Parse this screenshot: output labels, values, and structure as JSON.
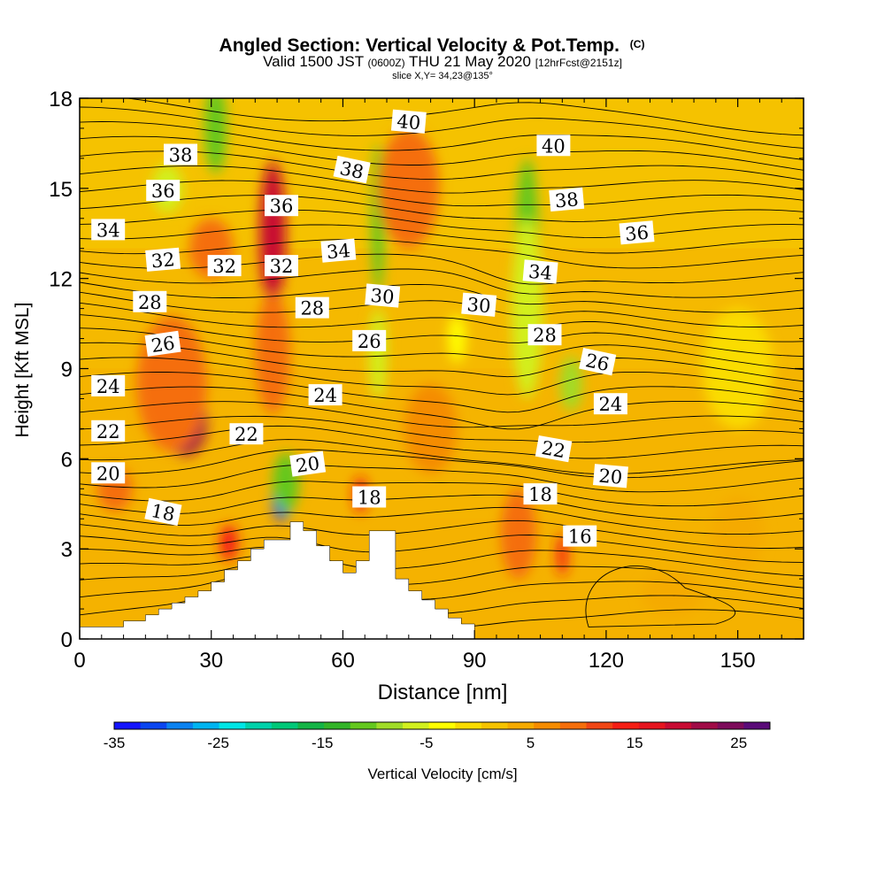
{
  "chart_data": {
    "type": "heatmap",
    "title": "Angled Section: Vertical Velocity & Pot.Temp.",
    "title_mark": "(C)",
    "subtitle_a": "Valid 1500 JST",
    "subtitle_b": "(0600Z)",
    "subtitle_c": "THU 21 May 2020",
    "subtitle_d": "[12hrFcst@2151z]",
    "subtitle2": "slice X,Y= 34,23@135°",
    "xlabel": "Distance [nm]",
    "ylabel": "Height [Kft MSL]",
    "xlim": [
      0,
      165
    ],
    "ylim": [
      0,
      18
    ],
    "x_ticks": [
      0,
      30,
      60,
      90,
      120,
      150
    ],
    "y_ticks": [
      0,
      3,
      6,
      9,
      12,
      15,
      18
    ],
    "colorbar": {
      "label": "Vertical Velocity [cm/s]",
      "range": [
        -35,
        28
      ],
      "tick_labels": [
        "-35",
        "-25",
        "-15",
        "-5",
        "5",
        "15",
        "25"
      ],
      "colors": [
        "#1414ff",
        "#0a46f0",
        "#0a82f0",
        "#00b4f0",
        "#00e6e6",
        "#00d2aa",
        "#00c878",
        "#14b446",
        "#32b428",
        "#64c81e",
        "#a0dc28",
        "#d2f01e",
        "#ffff00",
        "#fadc00",
        "#f5c300",
        "#f5aa00",
        "#f58c00",
        "#f56e0a",
        "#f04614",
        "#f51e14",
        "#e6141e",
        "#c80a32",
        "#a00a46",
        "#7d0a5a",
        "#5a0a78"
      ]
    },
    "contour_series": "Potential temperature (isentropes)",
    "contour_labels": [
      {
        "text": "38",
        "x": 23,
        "y": 16.1,
        "rot": 0
      },
      {
        "text": "36",
        "x": 19,
        "y": 14.9,
        "rot": 0
      },
      {
        "text": "34",
        "x": 6.5,
        "y": 13.6,
        "rot": 0
      },
      {
        "text": "32",
        "x": 19,
        "y": 12.6,
        "rot": -5
      },
      {
        "text": "32",
        "x": 33,
        "y": 12.4,
        "rot": 0
      },
      {
        "text": "32",
        "x": 46,
        "y": 12.4,
        "rot": 0
      },
      {
        "text": "36",
        "x": 46,
        "y": 14.4,
        "rot": 0
      },
      {
        "text": "28",
        "x": 16,
        "y": 11.2,
        "rot": 0
      },
      {
        "text": "28",
        "x": 53,
        "y": 11,
        "rot": 0
      },
      {
        "text": "26",
        "x": 19,
        "y": 9.8,
        "rot": -8
      },
      {
        "text": "24",
        "x": 6.5,
        "y": 8.4,
        "rot": 0
      },
      {
        "text": "22",
        "x": 6.5,
        "y": 6.9,
        "rot": 0
      },
      {
        "text": "20",
        "x": 6.5,
        "y": 5.5,
        "rot": 0
      },
      {
        "text": "18",
        "x": 19,
        "y": 4.2,
        "rot": 12
      },
      {
        "text": "22",
        "x": 38,
        "y": 6.8,
        "rot": 0
      },
      {
        "text": "20",
        "x": 52,
        "y": 5.8,
        "rot": -8
      },
      {
        "text": "24",
        "x": 56,
        "y": 8.1,
        "rot": 0
      },
      {
        "text": "26",
        "x": 66,
        "y": 9.9,
        "rot": 0
      },
      {
        "text": "34",
        "x": 59,
        "y": 12.9,
        "rot": -5
      },
      {
        "text": "38",
        "x": 62,
        "y": 15.6,
        "rot": 12
      },
      {
        "text": "40",
        "x": 75,
        "y": 17.2,
        "rot": 5
      },
      {
        "text": "30",
        "x": 69,
        "y": 11.4,
        "rot": 5
      },
      {
        "text": "18",
        "x": 66,
        "y": 4.7,
        "rot": 0
      },
      {
        "text": "30",
        "x": 91,
        "y": 11.1,
        "rot": 5
      },
      {
        "text": "34",
        "x": 105,
        "y": 12.2,
        "rot": 5
      },
      {
        "text": "28",
        "x": 106,
        "y": 10.1,
        "rot": 0
      },
      {
        "text": "26",
        "x": 118,
        "y": 9.2,
        "rot": 12
      },
      {
        "text": "24",
        "x": 121,
        "y": 7.8,
        "rot": 0
      },
      {
        "text": "22",
        "x": 108,
        "y": 6.3,
        "rot": 10
      },
      {
        "text": "20",
        "x": 121,
        "y": 5.4,
        "rot": 5
      },
      {
        "text": "18",
        "x": 105,
        "y": 4.8,
        "rot": 0
      },
      {
        "text": "16",
        "x": 114,
        "y": 3.4,
        "rot": 0
      },
      {
        "text": "40",
        "x": 108,
        "y": 16.4,
        "rot": 0
      },
      {
        "text": "38",
        "x": 111,
        "y": 14.6,
        "rot": -5
      },
      {
        "text": "36",
        "x": 127,
        "y": 13.5,
        "rot": -5
      }
    ],
    "terrain_profile": {
      "x": [
        0,
        10,
        10,
        15,
        15,
        18,
        18,
        21,
        21,
        24,
        24,
        27,
        27,
        30,
        30,
        33,
        33,
        36,
        36,
        39,
        39,
        42,
        42,
        48,
        48,
        51,
        51,
        54,
        54,
        57,
        57,
        60,
        60,
        63,
        63,
        66,
        66,
        72,
        72,
        75,
        75,
        78,
        78,
        81,
        81,
        84,
        84,
        87,
        87,
        90,
        90
      ],
      "y": [
        0.4,
        0.4,
        0.6,
        0.6,
        0.8,
        0.8,
        1.0,
        1.0,
        1.2,
        1.2,
        1.4,
        1.4,
        1.6,
        1.6,
        1.9,
        1.9,
        2.3,
        2.3,
        2.6,
        2.6,
        3.0,
        3.0,
        3.3,
        3.3,
        3.9,
        3.9,
        3.6,
        3.6,
        3.1,
        3.1,
        2.6,
        2.6,
        2.2,
        2.2,
        2.6,
        2.6,
        3.6,
        3.6,
        2.0,
        2.0,
        1.6,
        1.6,
        1.3,
        1.3,
        1.0,
        1.0,
        0.7,
        0.7,
        0.5,
        0.5,
        0.4
      ]
    },
    "velocity_features": [
      {
        "x": 24,
        "y": 7.2,
        "w": -10,
        "h": 2.2,
        "v": 22
      },
      {
        "x": 21,
        "y": 8.5,
        "w": -16,
        "h": 4.5,
        "v": 10
      },
      {
        "x": 44,
        "y": 13.5,
        "w": -6,
        "h": 4.8,
        "v": 20
      },
      {
        "x": 44,
        "y": 9.5,
        "w": -8,
        "h": 4,
        "v": 10
      },
      {
        "x": 46,
        "y": 4.6,
        "w": -4,
        "h": 1.3,
        "v": -33
      },
      {
        "x": 47,
        "y": 5.2,
        "w": -6,
        "h": 2,
        "v": -10
      },
      {
        "x": 34,
        "y": 3.2,
        "w": -4,
        "h": 1.2,
        "v": 14
      },
      {
        "x": 100,
        "y": 2.8,
        "w": -4,
        "h": 1.6,
        "v": 22
      },
      {
        "x": 100,
        "y": 3.5,
        "w": -8,
        "h": 3,
        "v": 10
      },
      {
        "x": 110,
        "y": 2.8,
        "w": -2,
        "h": 1.4,
        "v": 14
      },
      {
        "x": 64,
        "y": 4.8,
        "w": -3,
        "h": 1.2,
        "v": 13
      },
      {
        "x": 68,
        "y": 14,
        "w": -3,
        "h": 5,
        "v": -12
      },
      {
        "x": 68,
        "y": 9.5,
        "w": -4,
        "h": 3,
        "v": -5
      },
      {
        "x": 102,
        "y": 13.5,
        "w": -5,
        "h": 5,
        "v": -12
      },
      {
        "x": 102,
        "y": 11,
        "w": -7,
        "h": 6,
        "v": -5
      },
      {
        "x": 112,
        "y": 8.5,
        "w": -5,
        "h": 1.8,
        "v": -8
      },
      {
        "x": 31,
        "y": 17,
        "w": -5,
        "h": 3,
        "v": -10
      },
      {
        "x": 20,
        "y": 15,
        "w": -7,
        "h": 1.6,
        "v": -5
      },
      {
        "x": 30,
        "y": 13,
        "w": -10,
        "h": 2,
        "v": 8
      },
      {
        "x": 75,
        "y": 15,
        "w": -14,
        "h": 4,
        "v": 8
      },
      {
        "x": 135,
        "y": 1.5,
        "w": -14,
        "h": 1.5,
        "v": 5
      },
      {
        "x": 150,
        "y": 3.5,
        "w": -12,
        "h": 2.5,
        "v": 3
      },
      {
        "x": 86,
        "y": 10,
        "w": -4,
        "h": 1.6,
        "v": -3
      },
      {
        "x": 8,
        "y": 5,
        "w": -8,
        "h": 1.5,
        "v": 9
      },
      {
        "x": 150,
        "y": 9,
        "w": -16,
        "h": 4,
        "v": -2
      },
      {
        "x": 80,
        "y": 7,
        "w": -12,
        "h": 3,
        "v": 6
      }
    ]
  }
}
